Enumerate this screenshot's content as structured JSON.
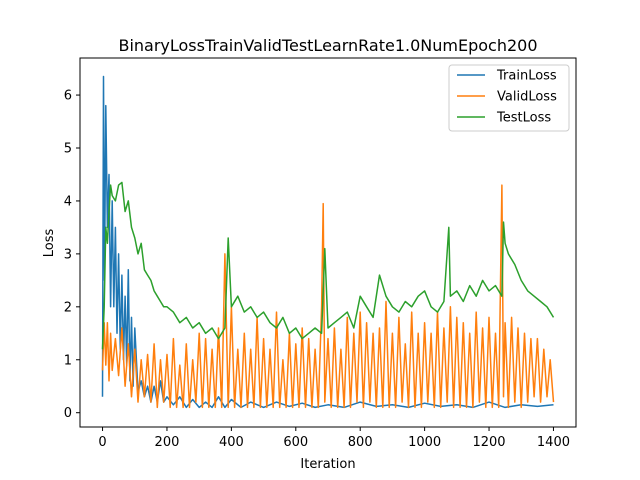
{
  "chart_data": {
    "type": "line",
    "title": "BinaryLossTrainValidTestLearnRate1.0NumEpoch200",
    "xlabel": "Iteration",
    "ylabel": "Loss",
    "xlim": [
      -70,
      1470
    ],
    "ylim": [
      -0.27,
      6.7
    ],
    "xticks": [
      0,
      200,
      400,
      600,
      800,
      1000,
      1200,
      1400
    ],
    "yticks": [
      0,
      1,
      2,
      3,
      4,
      5,
      6
    ],
    "grid": false,
    "legend_position": "top-right",
    "series": [
      {
        "name": "TrainLoss",
        "color": "#1f77b4",
        "x": [
          0,
          3,
          6,
          10,
          15,
          20,
          25,
          30,
          35,
          40,
          45,
          50,
          55,
          60,
          65,
          70,
          75,
          80,
          85,
          90,
          95,
          100,
          110,
          120,
          130,
          140,
          150,
          160,
          170,
          180,
          190,
          200,
          220,
          240,
          260,
          280,
          300,
          320,
          340,
          360,
          380,
          400,
          430,
          460,
          500,
          540,
          580,
          620,
          660,
          700,
          750,
          800,
          850,
          900,
          950,
          1000,
          1050,
          1100,
          1150,
          1200,
          1250,
          1300,
          1350,
          1400
        ],
        "y": [
          0.3,
          6.35,
          2.5,
          5.8,
          3.5,
          4.5,
          2.0,
          4.0,
          2.0,
          3.5,
          1.5,
          3.0,
          1.2,
          2.6,
          1.0,
          2.2,
          0.9,
          2.7,
          0.6,
          1.8,
          0.5,
          1.6,
          0.4,
          0.6,
          0.3,
          0.5,
          0.2,
          0.5,
          0.2,
          0.6,
          0.2,
          0.3,
          0.15,
          0.3,
          0.1,
          0.25,
          0.1,
          0.2,
          0.1,
          0.3,
          0.1,
          0.25,
          0.1,
          0.2,
          0.1,
          0.2,
          0.12,
          0.18,
          0.1,
          0.15,
          0.1,
          0.2,
          0.12,
          0.15,
          0.1,
          0.18,
          0.12,
          0.15,
          0.1,
          0.2,
          0.1,
          0.15,
          0.12,
          0.15
        ]
      },
      {
        "name": "ValidLoss",
        "color": "#ff7f0e",
        "x": [
          0,
          5,
          10,
          15,
          20,
          25,
          30,
          40,
          50,
          60,
          70,
          80,
          90,
          100,
          110,
          120,
          130,
          140,
          150,
          160,
          170,
          180,
          190,
          200,
          210,
          220,
          230,
          240,
          250,
          260,
          270,
          280,
          290,
          300,
          310,
          320,
          330,
          340,
          350,
          360,
          370,
          380,
          390,
          400,
          410,
          420,
          430,
          440,
          450,
          460,
          470,
          480,
          490,
          500,
          510,
          520,
          530,
          540,
          550,
          560,
          570,
          580,
          590,
          600,
          610,
          620,
          630,
          640,
          650,
          660,
          670,
          680,
          685,
          690,
          700,
          710,
          720,
          730,
          740,
          750,
          760,
          770,
          780,
          790,
          800,
          810,
          820,
          830,
          840,
          850,
          860,
          870,
          880,
          890,
          900,
          910,
          920,
          930,
          940,
          950,
          960,
          970,
          980,
          990,
          1000,
          1010,
          1020,
          1030,
          1040,
          1050,
          1060,
          1070,
          1080,
          1090,
          1100,
          1110,
          1120,
          1130,
          1140,
          1150,
          1160,
          1170,
          1180,
          1190,
          1200,
          1210,
          1220,
          1230,
          1240,
          1245,
          1250,
          1260,
          1270,
          1280,
          1290,
          1300,
          1310,
          1320,
          1330,
          1340,
          1350,
          1360,
          1370,
          1380,
          1390,
          1400
        ],
        "y": [
          0.8,
          1.7,
          0.9,
          1.7,
          0.6,
          1.5,
          0.8,
          1.4,
          0.7,
          1.6,
          0.5,
          1.3,
          0.3,
          1.2,
          0.2,
          1.0,
          0.3,
          1.1,
          0.2,
          1.3,
          0.1,
          1.0,
          0.2,
          1.1,
          0.1,
          1.4,
          0.1,
          0.9,
          0.1,
          1.3,
          0.1,
          1.0,
          0.2,
          1.5,
          0.1,
          1.4,
          0.1,
          1.2,
          0.1,
          1.6,
          0.1,
          3.0,
          0.1,
          2.0,
          0.1,
          1.2,
          0.1,
          1.5,
          0.1,
          1.2,
          0.1,
          1.8,
          0.1,
          1.4,
          0.1,
          1.2,
          0.1,
          1.9,
          0.1,
          1.0,
          0.1,
          1.5,
          0.1,
          1.3,
          0.1,
          1.6,
          0.1,
          1.4,
          0.1,
          1.2,
          0.1,
          2.0,
          3.95,
          0.2,
          1.4,
          0.1,
          1.6,
          0.1,
          1.2,
          0.1,
          1.8,
          0.1,
          1.5,
          0.2,
          1.9,
          0.1,
          1.7,
          0.2,
          1.5,
          0.1,
          1.6,
          0.1,
          2.1,
          0.1,
          1.5,
          0.1,
          1.8,
          0.2,
          1.3,
          0.1,
          1.9,
          0.1,
          1.5,
          0.1,
          1.7,
          0.2,
          1.5,
          0.1,
          1.9,
          0.1,
          1.6,
          0.2,
          2.0,
          0.1,
          1.8,
          0.1,
          1.7,
          0.1,
          1.5,
          0.1,
          1.9,
          0.2,
          1.6,
          0.1,
          1.8,
          0.1,
          1.5,
          0.1,
          4.3,
          0.3,
          1.7,
          0.1,
          1.8,
          0.2,
          1.6,
          0.1,
          1.5,
          0.2,
          1.4,
          0.3,
          1.4,
          0.2,
          1.2,
          0.3,
          1.0,
          0.2
        ]
      },
      {
        "name": "TestLoss",
        "color": "#2ca02c",
        "x": [
          0,
          5,
          10,
          15,
          20,
          25,
          30,
          40,
          50,
          60,
          70,
          80,
          90,
          100,
          110,
          120,
          130,
          140,
          150,
          160,
          170,
          180,
          190,
          200,
          220,
          240,
          260,
          280,
          300,
          320,
          340,
          360,
          380,
          390,
          400,
          420,
          440,
          460,
          480,
          500,
          520,
          540,
          560,
          580,
          600,
          620,
          640,
          660,
          680,
          690,
          700,
          720,
          740,
          760,
          780,
          800,
          820,
          840,
          860,
          880,
          900,
          920,
          940,
          960,
          980,
          1000,
          1020,
          1040,
          1060,
          1075,
          1080,
          1100,
          1120,
          1140,
          1160,
          1180,
          1200,
          1220,
          1240,
          1245,
          1250,
          1260,
          1280,
          1300,
          1320,
          1340,
          1360,
          1380,
          1400
        ],
        "y": [
          1.2,
          2.0,
          3.5,
          3.2,
          3.8,
          4.3,
          4.1,
          4.0,
          4.3,
          4.35,
          3.8,
          4.0,
          3.5,
          3.3,
          3.0,
          3.2,
          2.7,
          2.6,
          2.5,
          2.3,
          2.2,
          2.1,
          2.0,
          2.0,
          1.9,
          1.7,
          1.8,
          1.6,
          1.7,
          1.5,
          1.6,
          1.4,
          1.6,
          3.3,
          2.0,
          2.2,
          1.9,
          2.0,
          1.8,
          1.9,
          1.7,
          1.6,
          1.8,
          1.5,
          1.6,
          1.4,
          1.5,
          1.6,
          1.5,
          3.1,
          1.6,
          1.7,
          1.8,
          1.9,
          1.6,
          2.2,
          2.0,
          1.8,
          2.6,
          2.2,
          2.0,
          1.9,
          2.1,
          2.0,
          2.2,
          2.3,
          2.0,
          1.9,
          2.1,
          3.5,
          2.2,
          2.3,
          2.1,
          2.4,
          2.2,
          2.5,
          2.3,
          2.4,
          2.2,
          3.6,
          3.2,
          3.0,
          2.8,
          2.5,
          2.3,
          2.2,
          2.1,
          2.0,
          1.8
        ]
      }
    ]
  }
}
